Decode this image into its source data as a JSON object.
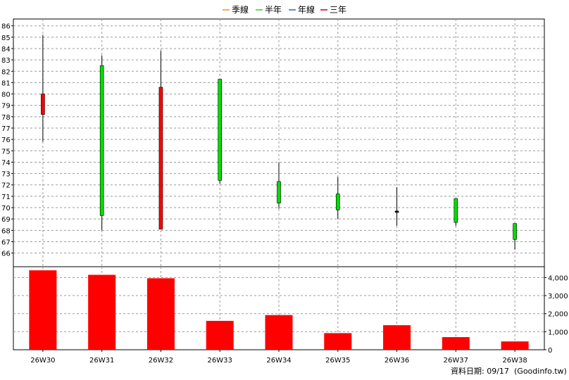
{
  "chart_data": [
    {
      "type": "candlestick",
      "legend": [
        {
          "label": "季線",
          "color": "#ff8c1a"
        },
        {
          "label": "半年",
          "color": "#33cc33"
        },
        {
          "label": "年線",
          "color": "#3366cc"
        },
        {
          "label": "三年",
          "color": "#cc0000"
        }
      ],
      "categories": [
        "26W30",
        "26W31",
        "26W32",
        "26W33",
        "26W34",
        "26W35",
        "26W36",
        "26W37",
        "26W38"
      ],
      "candles": [
        {
          "open": 78.2,
          "close": 80.0,
          "high": 85.2,
          "low": 75.8
        },
        {
          "open": 82.5,
          "close": 69.3,
          "high": 83.4,
          "low": 68.0
        },
        {
          "open": 68.1,
          "close": 80.6,
          "high": 83.8,
          "low": 68.1
        },
        {
          "open": 81.3,
          "close": 72.4,
          "high": 81.3,
          "low": 72.1
        },
        {
          "open": 72.3,
          "close": 70.4,
          "high": 74.0,
          "low": 69.9
        },
        {
          "open": 71.2,
          "close": 69.8,
          "high": 72.7,
          "low": 69.0
        },
        {
          "open": 69.7,
          "close": 69.7,
          "high": 71.8,
          "low": 68.4
        },
        {
          "open": 70.8,
          "close": 68.7,
          "high": 70.8,
          "low": 68.4
        },
        {
          "open": 68.6,
          "close": 67.2,
          "high": 68.6,
          "low": 66.3
        }
      ],
      "up_color": "#ff0000",
      "down_color": "#00dd00",
      "y_ticks": [
        66,
        67,
        68,
        69,
        70,
        71,
        72,
        73,
        74,
        75,
        76,
        77,
        78,
        79,
        80,
        81,
        82,
        83,
        84,
        85,
        86
      ],
      "ylim": [
        64.8,
        86.6
      ],
      "grid": true
    },
    {
      "type": "bar",
      "categories": [
        "26W30",
        "26W31",
        "26W32",
        "26W33",
        "26W34",
        "26W35",
        "26W36",
        "26W37",
        "26W38"
      ],
      "values": [
        4400,
        4150,
        3960,
        1600,
        1920,
        920,
        1360,
        700,
        460
      ],
      "bar_color": "#ff0000",
      "y_ticks": [
        0,
        1000,
        2000,
        3000,
        4000
      ],
      "y_tick_labels": [
        "0",
        "1,000",
        "2,000",
        "3,000",
        "4,000"
      ],
      "ylim": [
        0,
        4600
      ],
      "grid": true
    }
  ],
  "footer": {
    "label": "資料日期: 09/17",
    "source": "(Goodinfo.tw)"
  }
}
